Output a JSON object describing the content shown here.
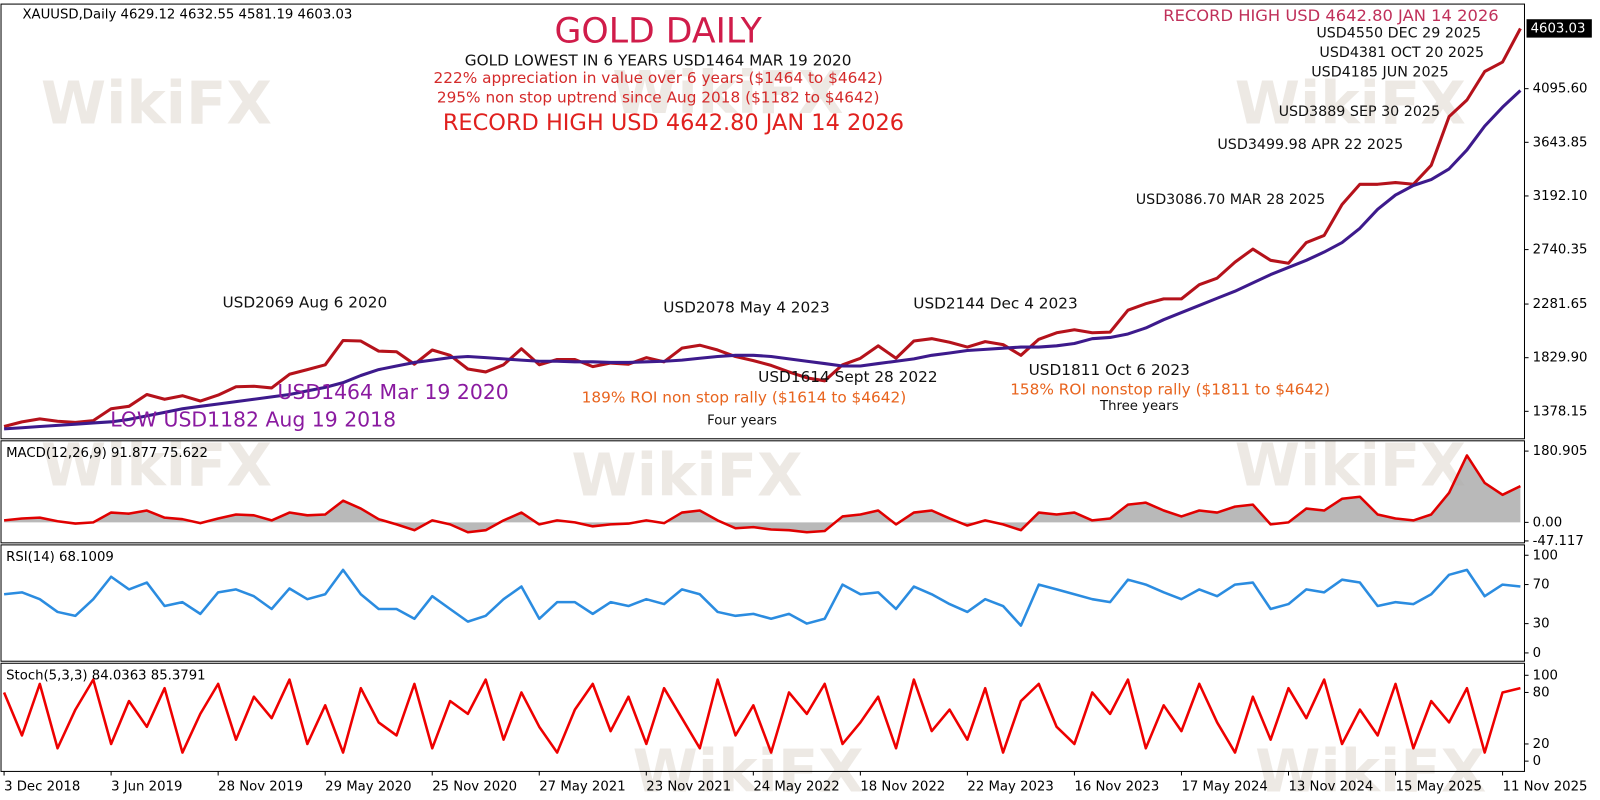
{
  "watermark": "WikiFX",
  "chart_data": [
    {
      "type": "line",
      "title": "GOLD DAILY",
      "header": "XAUUSD,Daily  4629.12 4632.55 4581.19 4603.03",
      "ylim": [
        1147,
        4808
      ],
      "yticks": [
        {
          "value": 4095.6,
          "label": "4095.60"
        },
        3643.85,
        {
          "value": 3192.1,
          "label": "3192.10"
        },
        2740.35,
        2281.65,
        {
          "value": 1829.9,
          "label": "1829.90"
        },
        1378.15
      ],
      "current": 4603.03,
      "series": [
        {
          "color": "#b5121b",
          "values": [
            1250,
            1290,
            1315,
            1295,
            1285,
            1300,
            1400,
            1420,
            1520,
            1480,
            1510,
            1465,
            1515,
            1585,
            1590,
            1575,
            1690,
            1730,
            1770,
            1975,
            1970,
            1885,
            1880,
            1775,
            1895,
            1850,
            1735,
            1710,
            1770,
            1905,
            1770,
            1815,
            1815,
            1755,
            1785,
            1775,
            1830,
            1795,
            1910,
            1935,
            1895,
            1840,
            1805,
            1765,
            1710,
            1660,
            1635,
            1770,
            1825,
            1930,
            1825,
            1970,
            1990,
            1960,
            1920,
            1965,
            1940,
            1850,
            1985,
            2040,
            2065,
            2040,
            2045,
            2230,
            2285,
            2325,
            2325,
            2445,
            2500,
            2635,
            2745,
            2650,
            2625,
            2800,
            2860,
            3120,
            3290,
            3290,
            3305,
            3290,
            3450,
            3860,
            4000,
            4240,
            4320,
            4603
          ]
        },
        {
          "color": "#3d1a8c",
          "values": [
            1230,
            1240,
            1250,
            1260,
            1270,
            1280,
            1290,
            1310,
            1340,
            1370,
            1400,
            1420,
            1440,
            1460,
            1480,
            1500,
            1520,
            1550,
            1580,
            1620,
            1680,
            1730,
            1760,
            1790,
            1810,
            1830,
            1840,
            1830,
            1820,
            1810,
            1800,
            1800,
            1795,
            1795,
            1790,
            1790,
            1795,
            1800,
            1810,
            1825,
            1840,
            1850,
            1850,
            1840,
            1820,
            1800,
            1780,
            1760,
            1760,
            1780,
            1800,
            1820,
            1850,
            1870,
            1890,
            1900,
            1910,
            1920,
            1920,
            1930,
            1950,
            1990,
            2000,
            2030,
            2080,
            2150,
            2210,
            2270,
            2330,
            2390,
            2460,
            2530,
            2590,
            2650,
            2720,
            2800,
            2920,
            3080,
            3200,
            3280,
            3330,
            3420,
            3580,
            3780,
            3940,
            4080
          ]
        }
      ],
      "annotations": [
        {
          "text": "GOLD LOWEST IN 6 YEARS USD1464 MAR 19 2020",
          "color": "#111111"
        },
        {
          "text": "222% appreciation in value over 6 years ($1464 to $4642)",
          "color": "#d42a2a"
        },
        {
          "text": "295% non stop uptrend since Aug 2018 ($1182 to $4642)",
          "color": "#d42a2a"
        },
        {
          "text": "RECORD HIGH USD 4642.80  JAN 14 2026",
          "color": "#e0201e"
        },
        {
          "text": "RECORD HIGH  USD 4642.80 JAN 14 2026",
          "color": "#c0305a"
        },
        {
          "text": "USD4550 DEC 29 2025",
          "color": "#111111"
        },
        {
          "text": "USD4381 OCT 20 2025",
          "color": "#111111"
        },
        {
          "text": "USD4185 JUN 2025",
          "color": "#111111"
        },
        {
          "text": "USD3889 SEP 30 2025",
          "color": "#111111"
        },
        {
          "text": "USD3499.98  APR 22 2025",
          "color": "#111111"
        },
        {
          "text": "USD3086.70 MAR 28 2025",
          "color": "#111111"
        },
        {
          "text": "USD2069 Aug 6 2020",
          "color": "#111111"
        },
        {
          "text": "USD2078 May 4 2023",
          "color": "#111111"
        },
        {
          "text": "USD2144 Dec 4 2023",
          "color": "#111111"
        },
        {
          "text": "USD1464 Mar 19 2020",
          "color": "#8a1aa0"
        },
        {
          "text": "LOW USD1182 Aug 19 2018",
          "color": "#8a1aa0"
        },
        {
          "text": "USD1614 Sept 28 2022",
          "color": "#111111"
        },
        {
          "text": "189% ROI non stop rally ($1614 to $4642)",
          "color": "#e8641e"
        },
        {
          "text": "Four years",
          "color": "#111111"
        },
        {
          "text": "USD1811 Oct 6 2023",
          "color": "#111111"
        },
        {
          "text": "158% ROI nonstop rally ($1811 to $4642)",
          "color": "#e8641e"
        },
        {
          "text": "Three years",
          "color": "#111111"
        }
      ]
    },
    {
      "type": "area",
      "title": "MACD(12,26,9) 91.877 75.622",
      "ylim": [
        -52,
        207
      ],
      "yticks": [
        180.905,
        {
          "value": 0,
          "label": "0.00"
        },
        -47.117
      ],
      "fill": "#a8a8a8",
      "series": [
        {
          "color": "#e00000",
          "values": [
            5,
            10,
            12,
            3,
            -3,
            0,
            25,
            22,
            30,
            12,
            8,
            -2,
            10,
            20,
            18,
            5,
            25,
            18,
            20,
            55,
            35,
            8,
            -5,
            -20,
            5,
            -5,
            -25,
            -20,
            5,
            25,
            -5,
            5,
            0,
            -10,
            -5,
            -3,
            5,
            -2,
            25,
            30,
            5,
            -15,
            -12,
            -18,
            -20,
            -25,
            -22,
            15,
            20,
            30,
            -5,
            25,
            30,
            10,
            -8,
            5,
            -5,
            -20,
            25,
            20,
            25,
            5,
            10,
            45,
            50,
            30,
            15,
            30,
            25,
            40,
            45,
            -5,
            0,
            35,
            30,
            60,
            65,
            20,
            10,
            5,
            20,
            75,
            170,
            100,
            70,
            92
          ]
        }
      ]
    },
    {
      "type": "line",
      "title": "RSI(14) 68.1009",
      "ylim": [
        -8.5,
        110.6
      ],
      "yticks": [
        100,
        70,
        30,
        0
      ],
      "series": [
        {
          "color": "#2b8ce0",
          "values": [
            60,
            62,
            55,
            42,
            38,
            55,
            78,
            65,
            72,
            48,
            52,
            40,
            62,
            65,
            58,
            45,
            66,
            55,
            60,
            85,
            60,
            45,
            45,
            35,
            58,
            45,
            32,
            38,
            55,
            68,
            35,
            52,
            52,
            40,
            52,
            48,
            55,
            50,
            65,
            60,
            42,
            38,
            40,
            35,
            40,
            30,
            35,
            70,
            60,
            62,
            45,
            68,
            60,
            50,
            42,
            55,
            48,
            28,
            70,
            65,
            60,
            55,
            52,
            75,
            70,
            62,
            55,
            65,
            58,
            70,
            72,
            45,
            50,
            65,
            62,
            75,
            72,
            48,
            52,
            50,
            60,
            80,
            85,
            58,
            70,
            68
          ]
        }
      ]
    },
    {
      "type": "line",
      "title": "Stoch(5,3,3) 84.0363 85.3791",
      "ylim": [
        -12,
        114
      ],
      "yticks": [
        100,
        80,
        20,
        0
      ],
      "categories": [
        "3 Dec 2018",
        null,
        null,
        null,
        null,
        null,
        "3 Jun 2019",
        null,
        null,
        null,
        null,
        null,
        "28 Nov 2019",
        null,
        null,
        null,
        null,
        null,
        "29 May 2020",
        null,
        null,
        null,
        null,
        null,
        "25 Nov 2020",
        null,
        null,
        null,
        null,
        null,
        "27 May 2021",
        null,
        null,
        null,
        null,
        null,
        "23 Nov 2021",
        null,
        null,
        null,
        null,
        null,
        "24 May 2022",
        null,
        null,
        null,
        null,
        null,
        "18 Nov 2022",
        null,
        null,
        null,
        null,
        null,
        "22 May 2023",
        null,
        null,
        null,
        null,
        null,
        "16 Nov 2023",
        null,
        null,
        null,
        null,
        null,
        "17 May 2024",
        null,
        null,
        null,
        null,
        null,
        "13 Nov 2024",
        null,
        null,
        null,
        null,
        null,
        "15 May 2025",
        null,
        null,
        null,
        null,
        null,
        "11 Nov 2025",
        null
      ],
      "series": [
        {
          "color": "#ee0000",
          "values": [
            80,
            30,
            90,
            15,
            60,
            95,
            20,
            70,
            40,
            85,
            10,
            55,
            90,
            25,
            75,
            50,
            95,
            20,
            65,
            10,
            85,
            45,
            30,
            90,
            15,
            70,
            55,
            95,
            25,
            80,
            40,
            10,
            60,
            90,
            35,
            75,
            20,
            85,
            50,
            15,
            95,
            30,
            65,
            10,
            80,
            55,
            90,
            20,
            45,
            75,
            15,
            95,
            35,
            60,
            25,
            85,
            10,
            70,
            90,
            40,
            20,
            80,
            55,
            95,
            15,
            65,
            35,
            90,
            45,
            10,
            75,
            25,
            85,
            50,
            95,
            20,
            60,
            30,
            90,
            15,
            70,
            45,
            85,
            10,
            80,
            85
          ]
        }
      ]
    }
  ]
}
